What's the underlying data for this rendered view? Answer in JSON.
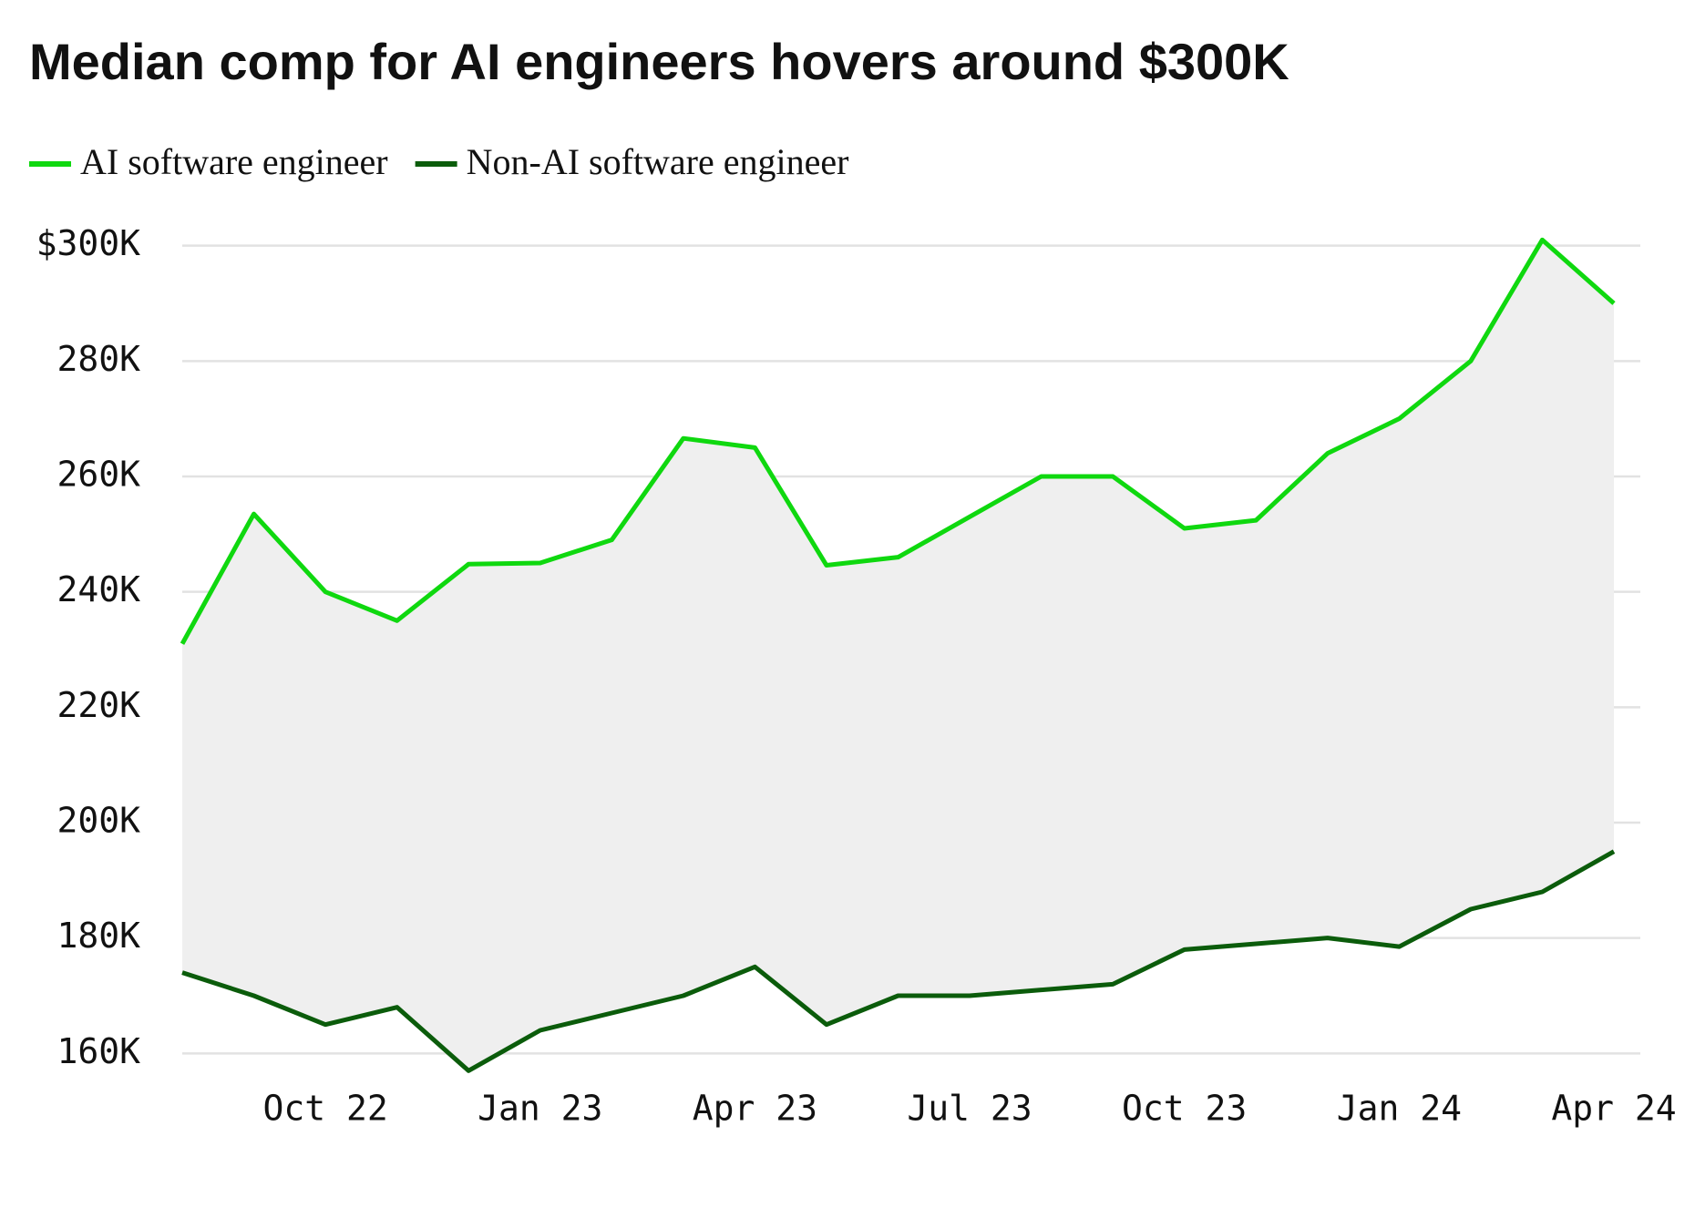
{
  "chart_data": {
    "type": "line",
    "title": "Median comp for AI engineers hovers around $300K",
    "x": [
      "2022-08",
      "2022-09",
      "2022-10",
      "2022-11",
      "2022-12",
      "2023-01",
      "2023-02",
      "2023-03",
      "2023-04",
      "2023-05",
      "2023-06",
      "2023-07",
      "2023-08",
      "2023-09",
      "2023-10",
      "2023-11",
      "2023-12",
      "2024-01",
      "2024-02",
      "2024-03",
      "2024-04"
    ],
    "series": [
      {
        "name": "AI software engineer",
        "color": "#0fd80f",
        "values": [
          231000,
          253500,
          240000,
          235000,
          244800,
          245000,
          249000,
          266600,
          265000,
          244600,
          246000,
          253000,
          260000,
          260000,
          251000,
          252400,
          264000,
          270000,
          280000,
          301000,
          290000
        ]
      },
      {
        "name": "Non-AI software engineer",
        "color": "#0b5c0b",
        "values": [
          174000,
          170000,
          165000,
          168000,
          157000,
          164000,
          167000,
          170000,
          175000,
          165000,
          170000,
          170000,
          171000,
          172000,
          178000,
          179000,
          180000,
          178500,
          185000,
          188000,
          195000
        ]
      }
    ],
    "fill_between": true,
    "fill_color": "#efefef",
    "xlim": [
      "2022-08",
      "2024-04"
    ],
    "xticks": [
      {
        "value": "2022-10",
        "label": "Oct 22"
      },
      {
        "value": "2023-01",
        "label": "Jan 23"
      },
      {
        "value": "2023-04",
        "label": "Apr 23"
      },
      {
        "value": "2023-07",
        "label": "Jul 23"
      },
      {
        "value": "2023-10",
        "label": "Oct 23"
      },
      {
        "value": "2024-01",
        "label": "Jan 24"
      },
      {
        "value": "2024-04",
        "label": "Apr 24"
      }
    ],
    "ylim": [
      155000,
      302000
    ],
    "yticks": [
      {
        "value": 160000,
        "label": "160K"
      },
      {
        "value": 180000,
        "label": "180K"
      },
      {
        "value": 200000,
        "label": "200K"
      },
      {
        "value": 220000,
        "label": "220K"
      },
      {
        "value": 240000,
        "label": "240K"
      },
      {
        "value": 260000,
        "label": "260K"
      },
      {
        "value": 280000,
        "label": "280K"
      },
      {
        "value": 300000,
        "label": "$300K"
      }
    ],
    "grid": true,
    "legend": "top-left"
  }
}
